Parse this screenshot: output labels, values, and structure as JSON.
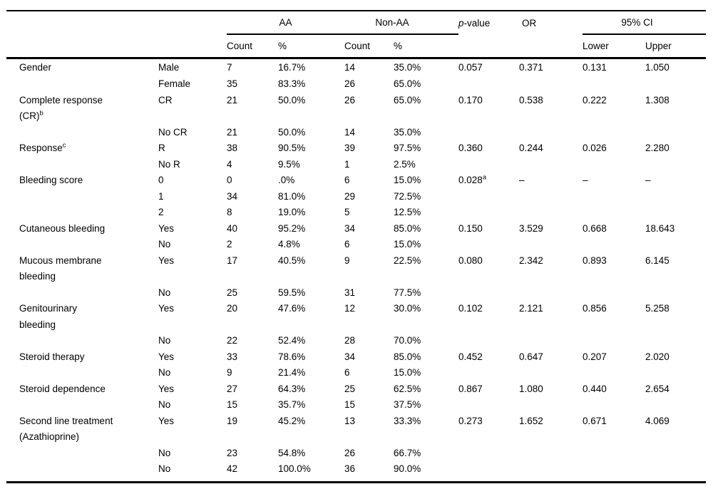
{
  "page": {
    "background": "#ffffff",
    "text_color": "#000000",
    "rule_color": "#000000"
  },
  "table": {
    "header": {
      "group_aa": "AA",
      "group_nonaa": "Non-AA",
      "p_value_italic": "p",
      "p_value_rest": "-value",
      "or": "OR",
      "group_ci": "95% CI",
      "sub_aa_count": "Count",
      "sub_aa_pct": "%",
      "sub_nonaa_count": "Count",
      "sub_nonaa_pct": "%",
      "sub_ci_lower": "Lower",
      "sub_ci_upper": "Upper"
    },
    "rows": [
      {
        "label": [
          "Gender"
        ],
        "label_sup": "",
        "category": "Male",
        "aa_count": "7",
        "aa_pct": "16.7%",
        "nonaa_count": "14",
        "nonaa_pct": "35.0%",
        "p_value": "0.057",
        "p_sup": "",
        "or": "0.371",
        "ci_lower": "0.131",
        "ci_upper": "1.050"
      },
      {
        "label": [],
        "label_sup": "",
        "category": "Female",
        "aa_count": "35",
        "aa_pct": "83.3%",
        "nonaa_count": "26",
        "nonaa_pct": "65.0%",
        "p_value": "",
        "p_sup": "",
        "or": "",
        "ci_lower": "",
        "ci_upper": ""
      },
      {
        "label": [
          "Complete response",
          "(CR)"
        ],
        "label_sup": "b",
        "category": "CR",
        "aa_count": "21",
        "aa_pct": "50.0%",
        "nonaa_count": "26",
        "nonaa_pct": "65.0%",
        "p_value": "0.170",
        "p_sup": "",
        "or": "0.538",
        "ci_lower": "0.222",
        "ci_upper": "1.308"
      },
      {
        "label": [],
        "label_sup": "",
        "category": "No CR",
        "aa_count": "21",
        "aa_pct": "50.0%",
        "nonaa_count": "14",
        "nonaa_pct": "35.0%",
        "p_value": "",
        "p_sup": "",
        "or": "",
        "ci_lower": "",
        "ci_upper": ""
      },
      {
        "label": [
          "Response"
        ],
        "label_sup": "c",
        "category": "R",
        "aa_count": "38",
        "aa_pct": "90.5%",
        "nonaa_count": "39",
        "nonaa_pct": "97.5%",
        "p_value": "0.360",
        "p_sup": "",
        "or": "0.244",
        "ci_lower": "0.026",
        "ci_upper": "2.280"
      },
      {
        "label": [],
        "label_sup": "",
        "category": "No R",
        "aa_count": "4",
        "aa_pct": "9.5%",
        "nonaa_count": "1",
        "nonaa_pct": "2.5%",
        "p_value": "",
        "p_sup": "",
        "or": "",
        "ci_lower": "",
        "ci_upper": ""
      },
      {
        "label": [
          "Bleeding score"
        ],
        "label_sup": "",
        "category": "0",
        "aa_count": "0",
        "aa_pct": ".0%",
        "nonaa_count": "6",
        "nonaa_pct": "15.0%",
        "p_value": "0.028",
        "p_sup": "a",
        "or": "–",
        "ci_lower": "–",
        "ci_upper": "–"
      },
      {
        "label": [],
        "label_sup": "",
        "category": "1",
        "aa_count": "34",
        "aa_pct": "81.0%",
        "nonaa_count": "29",
        "nonaa_pct": "72.5%",
        "p_value": "",
        "p_sup": "",
        "or": "",
        "ci_lower": "",
        "ci_upper": ""
      },
      {
        "label": [],
        "label_sup": "",
        "category": "2",
        "aa_count": "8",
        "aa_pct": "19.0%",
        "nonaa_count": "5",
        "nonaa_pct": "12.5%",
        "p_value": "",
        "p_sup": "",
        "or": "",
        "ci_lower": "",
        "ci_upper": ""
      },
      {
        "label": [
          "Cutaneous bleeding"
        ],
        "label_sup": "",
        "category": "Yes",
        "aa_count": "40",
        "aa_pct": "95.2%",
        "nonaa_count": "34",
        "nonaa_pct": "85.0%",
        "p_value": "0.150",
        "p_sup": "",
        "or": "3.529",
        "ci_lower": "0.668",
        "ci_upper": "18.643"
      },
      {
        "label": [],
        "label_sup": "",
        "category": "No",
        "aa_count": "2",
        "aa_pct": "4.8%",
        "nonaa_count": "6",
        "nonaa_pct": "15.0%",
        "p_value": "",
        "p_sup": "",
        "or": "",
        "ci_lower": "",
        "ci_upper": ""
      },
      {
        "label": [
          "Mucous membrane",
          "bleeding"
        ],
        "label_sup": "",
        "category": "Yes",
        "aa_count": "17",
        "aa_pct": "40.5%",
        "nonaa_count": "9",
        "nonaa_pct": "22.5%",
        "p_value": "0.080",
        "p_sup": "",
        "or": "2.342",
        "ci_lower": "0.893",
        "ci_upper": "6.145"
      },
      {
        "label": [],
        "label_sup": "",
        "category": "No",
        "aa_count": "25",
        "aa_pct": "59.5%",
        "nonaa_count": "31",
        "nonaa_pct": "77.5%",
        "p_value": "",
        "p_sup": "",
        "or": "",
        "ci_lower": "",
        "ci_upper": ""
      },
      {
        "label": [
          "Genitourinary",
          "bleeding"
        ],
        "label_sup": "",
        "category": "Yes",
        "aa_count": "20",
        "aa_pct": "47.6%",
        "nonaa_count": "12",
        "nonaa_pct": "30.0%",
        "p_value": "0.102",
        "p_sup": "",
        "or": "2.121",
        "ci_lower": "0.856",
        "ci_upper": "5.258"
      },
      {
        "label": [],
        "label_sup": "",
        "category": "No",
        "aa_count": "22",
        "aa_pct": "52.4%",
        "nonaa_count": "28",
        "nonaa_pct": "70.0%",
        "p_value": "",
        "p_sup": "",
        "or": "",
        "ci_lower": "",
        "ci_upper": ""
      },
      {
        "label": [
          "Steroid therapy"
        ],
        "label_sup": "",
        "category": "Yes",
        "aa_count": "33",
        "aa_pct": "78.6%",
        "nonaa_count": "34",
        "nonaa_pct": "85.0%",
        "p_value": "0.452",
        "p_sup": "",
        "or": "0.647",
        "ci_lower": "0.207",
        "ci_upper": "2.020"
      },
      {
        "label": [],
        "label_sup": "",
        "category": "No",
        "aa_count": "9",
        "aa_pct": "21.4%",
        "nonaa_count": "6",
        "nonaa_pct": "15.0%",
        "p_value": "",
        "p_sup": "",
        "or": "",
        "ci_lower": "",
        "ci_upper": ""
      },
      {
        "label": [
          "Steroid dependence"
        ],
        "label_sup": "",
        "category": "Yes",
        "aa_count": "27",
        "aa_pct": "64.3%",
        "nonaa_count": "25",
        "nonaa_pct": "62.5%",
        "p_value": "0.867",
        "p_sup": "",
        "or": "1.080",
        "ci_lower": "0.440",
        "ci_upper": "2.654"
      },
      {
        "label": [],
        "label_sup": "",
        "category": "No",
        "aa_count": "15",
        "aa_pct": "35.7%",
        "nonaa_count": "15",
        "nonaa_pct": "37.5%",
        "p_value": "",
        "p_sup": "",
        "or": "",
        "ci_lower": "",
        "ci_upper": ""
      },
      {
        "label": [
          "Second line treatment",
          "(Azathioprine)"
        ],
        "label_sup": "",
        "category": "Yes",
        "aa_count": "19",
        "aa_pct": "45.2%",
        "nonaa_count": "13",
        "nonaa_pct": "33.3%",
        "p_value": "0.273",
        "p_sup": "",
        "or": "1.652",
        "ci_lower": "0.671",
        "ci_upper": "4.069"
      },
      {
        "label": [],
        "label_sup": "",
        "category": "No",
        "aa_count": "23",
        "aa_pct": "54.8%",
        "nonaa_count": "26",
        "nonaa_pct": "66.7%",
        "p_value": "",
        "p_sup": "",
        "or": "",
        "ci_lower": "",
        "ci_upper": ""
      },
      {
        "label": [],
        "label_sup": "",
        "category": "No",
        "aa_count": "42",
        "aa_pct": "100.0%",
        "nonaa_count": "36",
        "nonaa_pct": "90.0%",
        "p_value": "",
        "p_sup": "",
        "or": "",
        "ci_lower": "",
        "ci_upper": ""
      }
    ]
  }
}
